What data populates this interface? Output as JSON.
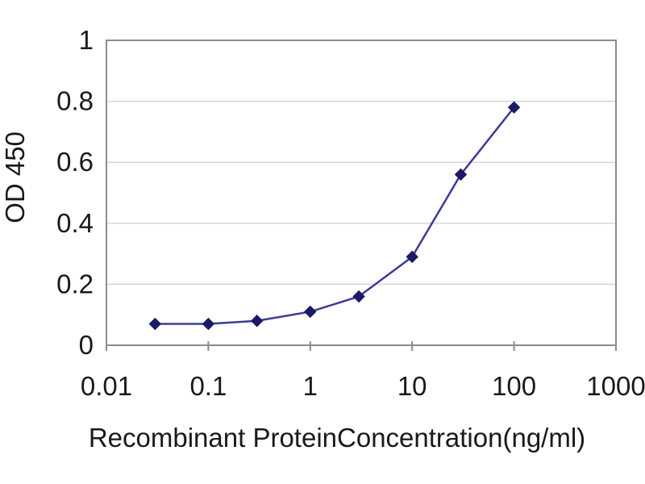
{
  "chart_data": {
    "type": "line",
    "title": "",
    "xlabel": "Recombinant ProteinConcentration(ng/ml)",
    "ylabel": "OD 450",
    "x_scale": "log",
    "x": [
      0.03,
      0.1,
      0.3,
      1,
      3,
      10,
      30,
      100
    ],
    "y": [
      0.07,
      0.07,
      0.08,
      0.11,
      0.16,
      0.29,
      0.56,
      0.78
    ],
    "xlim": [
      0.01,
      1000
    ],
    "ylim": [
      0,
      1
    ],
    "x_tick_labels": [
      "0.01",
      "0.1",
      "1",
      "10",
      "100",
      "1000"
    ],
    "x_tick_values": [
      0.01,
      0.1,
      1,
      10,
      100,
      1000
    ],
    "y_tick_labels": [
      "0",
      "0.2",
      "0.4",
      "0.6",
      "0.8",
      "1"
    ],
    "y_tick_values": [
      0,
      0.2,
      0.4,
      0.6,
      0.8,
      1
    ],
    "grid": true,
    "legend": false,
    "marker_shape": "diamond",
    "colors": {
      "line": "#3c3c96",
      "marker": "#1a1a66",
      "gridline": "#d6d6d6",
      "frame": "#8c8c8c",
      "tick_text": "#1a1a1a",
      "background": "#ffffff"
    }
  }
}
